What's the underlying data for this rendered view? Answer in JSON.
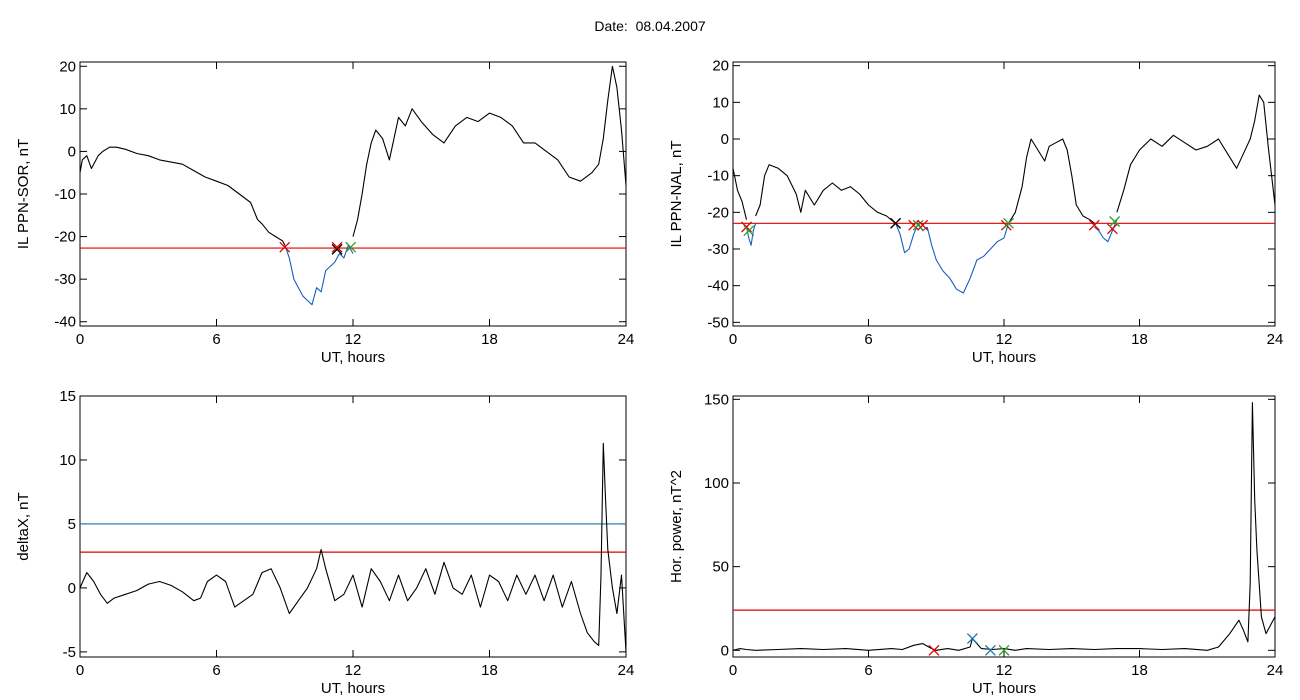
{
  "figure": {
    "title": "Date:  08.04.2007"
  },
  "chart_data": [
    {
      "type": "line",
      "ylabel": "IL PPN-SOR, nT",
      "xlabel": "UT, hours",
      "xlim": [
        0,
        24
      ],
      "ylim": [
        -41,
        21
      ],
      "xticks": [
        0,
        6,
        12,
        18,
        24
      ],
      "yticks": [
        -40,
        -30,
        -20,
        -10,
        0,
        10,
        20
      ],
      "hlines": [
        {
          "y": -22.7,
          "color": "#e00000"
        }
      ],
      "series": [
        {
          "color": "#000000",
          "x": [
            0,
            0.1,
            0.3,
            0.5,
            0.8,
            1.0,
            1.3,
            1.6,
            2.0,
            2.5,
            3.0,
            3.5,
            4.0,
            4.5,
            5.0,
            5.5,
            6.0,
            6.5,
            7.0,
            7.5,
            7.8,
            8.0,
            8.3,
            8.6,
            8.9,
            9.0
          ],
          "y": [
            -5,
            -2,
            -1,
            -4,
            -1,
            0,
            1,
            1,
            0.5,
            -0.5,
            -1,
            -2,
            -2.5,
            -3,
            -4.5,
            -6,
            -7,
            -8,
            -10,
            -12,
            -16,
            -17,
            -19,
            -20,
            -21,
            -22
          ]
        },
        {
          "color": "#1560bd",
          "x": [
            9.0,
            9.2,
            9.4,
            9.6,
            9.8,
            10.0,
            10.2,
            10.4,
            10.6,
            10.8,
            11.0,
            11.2,
            11.4,
            11.6,
            11.8,
            12.0
          ],
          "y": [
            -22,
            -25,
            -30,
            -32,
            -34,
            -35,
            -36,
            -32,
            -33,
            -28,
            -27,
            -26,
            -24,
            -25,
            -22,
            -24
          ]
        },
        {
          "color": "#000000",
          "x": [
            12.0,
            12.2,
            12.4,
            12.6,
            12.8,
            13.0,
            13.3,
            13.6,
            14.0,
            14.3,
            14.6,
            15.0,
            15.5,
            16.0,
            16.5,
            17.0,
            17.5,
            18.0,
            18.5,
            19.0,
            19.5,
            20.0,
            20.5,
            21.0,
            21.5,
            22.0,
            22.5,
            22.8,
            23.0,
            23.2,
            23.4,
            23.6,
            23.8,
            24.0
          ],
          "y": [
            -20,
            -16,
            -10,
            -3,
            2,
            5,
            3,
            -2,
            8,
            6,
            10,
            7,
            4,
            2,
            6,
            8,
            7,
            9,
            8,
            6,
            2,
            2,
            0,
            -2,
            -6,
            -7,
            -5,
            -3,
            3,
            12,
            20,
            15,
            5,
            -8
          ]
        }
      ],
      "markers": [
        {
          "x": 9.0,
          "y": -22.5,
          "color": "#e00000"
        },
        {
          "x": 11.3,
          "y": -23,
          "color": "#000000"
        },
        {
          "x": 11.3,
          "y": -22.5,
          "color": "#e00000"
        },
        {
          "x": 11.9,
          "y": -22.5,
          "color": "#2ca02c"
        }
      ]
    },
    {
      "type": "line",
      "ylabel": "IL PPN-NAL, nT",
      "xlabel": "UT, hours",
      "xlim": [
        0,
        24
      ],
      "ylim": [
        -51,
        21
      ],
      "xticks": [
        0,
        6,
        12,
        18,
        24
      ],
      "yticks": [
        -50,
        -40,
        -30,
        -20,
        -10,
        0,
        10,
        20
      ],
      "hlines": [
        {
          "y": -23,
          "color": "#e00000"
        }
      ],
      "series": [
        {
          "color": "#000000",
          "x": [
            0,
            0.2,
            0.4,
            0.6
          ],
          "y": [
            -8,
            -14,
            -17,
            -22
          ]
        },
        {
          "color": "#1560bd",
          "x": [
            0.6,
            0.7,
            0.8,
            0.9,
            1.0
          ],
          "y": [
            -24,
            -27,
            -29,
            -25,
            -23
          ]
        },
        {
          "color": "#000000",
          "x": [
            1.0,
            1.2,
            1.4,
            1.6,
            2.0,
            2.4,
            2.8,
            3.0,
            3.2,
            3.6,
            4.0,
            4.4,
            4.8,
            5.2,
            5.6,
            6.0,
            6.4,
            6.8,
            7.0,
            7.2
          ],
          "y": [
            -21,
            -18,
            -10,
            -7,
            -8,
            -10,
            -15,
            -20,
            -14,
            -18,
            -14,
            -12,
            -14,
            -13,
            -15,
            -18,
            -20,
            -21,
            -22,
            -23
          ]
        },
        {
          "color": "#1560bd",
          "x": [
            7.2,
            7.4,
            7.6,
            7.8,
            8.0,
            8.2,
            8.4,
            8.6
          ],
          "y": [
            -23,
            -26,
            -31,
            -30,
            -26,
            -23,
            -25,
            -24
          ]
        },
        {
          "color": "#1560bd",
          "x": [
            8.6,
            8.8,
            9.0,
            9.3,
            9.6,
            9.9,
            10.2,
            10.5,
            10.8,
            11.1,
            11.4,
            11.7,
            12.0,
            12.2
          ],
          "y": [
            -24,
            -29,
            -33,
            -36,
            -38,
            -41,
            -42,
            -38,
            -33,
            -32,
            -30,
            -28,
            -27,
            -23
          ]
        },
        {
          "color": "#000000",
          "x": [
            12.2,
            12.5,
            12.8,
            13.0,
            13.2,
            13.5,
            13.8,
            14.0,
            14.3,
            14.6,
            14.8,
            15.0,
            15.2,
            15.5,
            15.8,
            16.0
          ],
          "y": [
            -23,
            -20,
            -13,
            -5,
            0,
            -3,
            -6,
            -2,
            -1,
            0,
            -3,
            -10,
            -18,
            -21,
            -22,
            -23
          ]
        },
        {
          "color": "#1560bd",
          "x": [
            16.0,
            16.2,
            16.4,
            16.6,
            16.8,
            17.0
          ],
          "y": [
            -24,
            -25,
            -27,
            -28,
            -25,
            -22
          ]
        },
        {
          "color": "#000000",
          "x": [
            17.0,
            17.3,
            17.6,
            18.0,
            18.5,
            19.0,
            19.5,
            20.0,
            20.5,
            21.0,
            21.5,
            22.0,
            22.3,
            22.6,
            22.9,
            23.1,
            23.3,
            23.5,
            23.7,
            24.0
          ],
          "y": [
            -20,
            -14,
            -7,
            -3,
            0,
            -2,
            1,
            -1,
            -3,
            -2,
            0,
            -5,
            -8,
            -4,
            0,
            5,
            12,
            10,
            -2,
            -18
          ]
        }
      ],
      "markers": [
        {
          "x": 0.6,
          "y": -24,
          "color": "#e00000"
        },
        {
          "x": 0.7,
          "y": -25,
          "color": "#2ca02c"
        },
        {
          "x": 7.2,
          "y": -23,
          "color": "#e00000"
        },
        {
          "x": 7.2,
          "y": -23,
          "color": "#000000"
        },
        {
          "x": 8.0,
          "y": -23.5,
          "color": "#e00000"
        },
        {
          "x": 8.2,
          "y": -23.5,
          "color": "#2ca02c"
        },
        {
          "x": 8.4,
          "y": -23.5,
          "color": "#e00000"
        },
        {
          "x": 12.1,
          "y": -23.5,
          "color": "#e00000"
        },
        {
          "x": 12.2,
          "y": -23,
          "color": "#2ca02c"
        },
        {
          "x": 16.0,
          "y": -23.5,
          "color": "#e00000"
        },
        {
          "x": 16.8,
          "y": -24.5,
          "color": "#e00000"
        },
        {
          "x": 16.9,
          "y": -22.5,
          "color": "#2ca02c"
        }
      ]
    },
    {
      "type": "line",
      "ylabel": "deltaX, nT",
      "xlabel": "UT, hours",
      "xlim": [
        0,
        24
      ],
      "ylim": [
        -5.4,
        15
      ],
      "xticks": [
        0,
        6,
        12,
        18,
        24
      ],
      "yticks": [
        -5,
        0,
        5,
        10,
        15
      ],
      "hlines": [
        {
          "y": 5.0,
          "color": "#1a78a8"
        },
        {
          "y": 2.8,
          "color": "#e00000"
        }
      ],
      "series": [
        {
          "color": "#000000",
          "x": [
            0,
            0.3,
            0.6,
            0.9,
            1.2,
            1.5,
            2.0,
            2.5,
            3.0,
            3.5,
            4.0,
            4.5,
            5.0,
            5.3,
            5.6,
            6.0,
            6.4,
            6.8,
            7.2,
            7.6,
            8.0,
            8.4,
            8.8,
            9.2,
            9.6,
            10.0,
            10.4,
            10.6,
            10.8,
            11.2,
            11.6,
            12.0,
            12.4,
            12.8,
            13.2,
            13.6,
            14.0,
            14.4,
            14.8,
            15.2,
            15.6,
            16.0,
            16.4,
            16.8,
            17.2,
            17.6,
            18.0,
            18.4,
            18.8,
            19.2,
            19.6,
            20.0,
            20.4,
            20.8,
            21.2,
            21.6,
            22.0,
            22.3,
            22.6,
            22.8,
            22.9,
            23.0,
            23.1,
            23.2,
            23.4,
            23.6,
            23.8,
            24.0
          ],
          "y": [
            0,
            1.2,
            0.5,
            -0.5,
            -1.2,
            -0.8,
            -0.5,
            -0.2,
            0.3,
            0.5,
            0.2,
            -0.3,
            -1,
            -0.8,
            0.5,
            1,
            0.5,
            -1.5,
            -1,
            -0.5,
            1.2,
            1.5,
            0,
            -2,
            -1,
            0,
            1.5,
            3,
            1.5,
            -1,
            -0.5,
            1,
            -1.5,
            1.5,
            0.5,
            -1,
            1,
            -1,
            0,
            1.5,
            -0.5,
            2,
            0,
            -0.5,
            1,
            -1.5,
            1,
            0.5,
            -1,
            1,
            -0.5,
            1,
            -1,
            1,
            -1.5,
            0.5,
            -2,
            -3.5,
            -4.2,
            -4.5,
            1,
            11.3,
            7,
            3,
            0,
            -2,
            1,
            -5
          ]
        }
      ],
      "markers": []
    },
    {
      "type": "line",
      "ylabel": "Hor. power, nT^2",
      "xlabel": "UT, hours",
      "xlim": [
        0,
        24
      ],
      "ylim": [
        -4,
        152
      ],
      "xticks": [
        0,
        6,
        12,
        18,
        24
      ],
      "yticks": [
        0,
        50,
        100,
        150
      ],
      "hlines": [
        {
          "y": 24,
          "color": "#e00000"
        }
      ],
      "series": [
        {
          "color": "#000000",
          "x": [
            0,
            0.3,
            0.6,
            1.0,
            2.0,
            3.0,
            4.0,
            5.0,
            6.0,
            7.0,
            7.5,
            8.0,
            8.4,
            8.8,
            9.0,
            9.5,
            10.0,
            10.5,
            10.6,
            11.0,
            11.5,
            12.0,
            12.5,
            13.0,
            14.0,
            15.0,
            16.0,
            17.0,
            18.0,
            19.0,
            20.0,
            21.0,
            21.5,
            22.0,
            22.4,
            22.6,
            22.8,
            22.9,
            23.0,
            23.1,
            23.2,
            23.4,
            23.6,
            23.8,
            24.0
          ],
          "y": [
            0,
            1,
            0.5,
            0,
            0.5,
            1,
            0.5,
            1,
            0,
            1,
            0.5,
            3,
            4,
            1,
            0,
            1,
            0,
            2,
            7,
            1,
            0.5,
            1,
            0,
            1,
            0.5,
            1,
            0.5,
            1,
            1,
            0.5,
            1,
            0,
            2,
            10,
            18,
            12,
            5,
            40,
            148,
            90,
            60,
            20,
            10,
            15,
            20
          ]
        }
      ],
      "markers": [
        {
          "x": 8.9,
          "y": 0,
          "color": "#e00000"
        },
        {
          "x": 10.6,
          "y": 7,
          "color": "#1a78a8"
        },
        {
          "x": 11.4,
          "y": 0,
          "color": "#1a78a8"
        },
        {
          "x": 12.0,
          "y": 0,
          "color": "#2ca02c"
        }
      ]
    }
  ]
}
